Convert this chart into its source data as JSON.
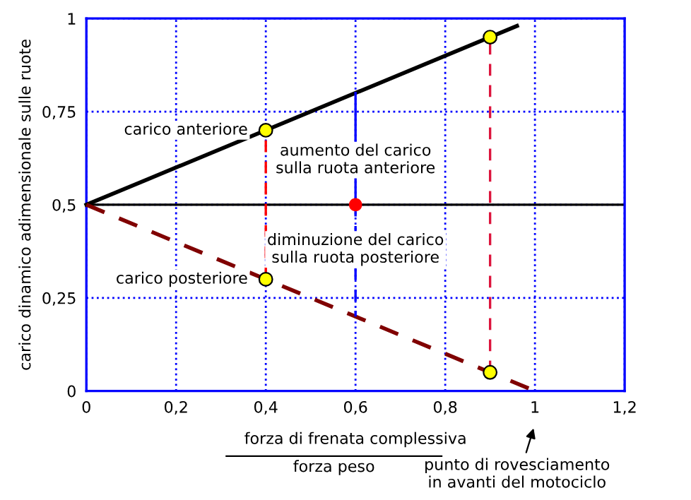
{
  "chart_data": {
    "type": "line",
    "xlabel": "forza di frenata complessiva\nforza peso",
    "ylabel": "carico dinamico adimensionale sulle ruote",
    "xlim": [
      0,
      1.2
    ],
    "xticks": [
      0,
      {
        "value": 0.2,
        "label": "0,2"
      },
      {
        "value": 0.4,
        "label": "0,4"
      },
      {
        "value": 0.6,
        "label": "0,6"
      },
      {
        "value": 0.8,
        "label": "0,8"
      },
      1,
      {
        "value": 1.2,
        "label": "1,2"
      }
    ],
    "ylim": [
      0,
      1
    ],
    "yticks": [
      0,
      {
        "value": 0.25,
        "label": "0,25"
      },
      {
        "value": 0.5,
        "label": "0,5"
      },
      {
        "value": 0.75,
        "label": "0,75"
      },
      1
    ],
    "grid": true,
    "series": [
      {
        "color": "#000000",
        "line_style": "solid",
        "x": [
          0,
          0.96
        ],
        "values": [
          0.5,
          0.98
        ]
      },
      {
        "color": "#800000",
        "line_style": "dashed",
        "x": [
          0,
          1
        ],
        "values": [
          0.5,
          0
        ]
      },
      {
        "type": "line",
        "color": "#ff0000",
        "line_style": "dashed",
        "x": [
          0.4,
          0.4
        ],
        "values": [
          0.3,
          0.7
        ]
      },
      {
        "type": "line",
        "color": "#dc143c",
        "line_style": "dashed",
        "x": [
          0.9,
          0.9
        ],
        "values": [
          0.05,
          0.95
        ]
      },
      {
        "type": "line",
        "color": "#0000ff",
        "line_style": "solid",
        "x": [
          0.6,
          0.6
        ],
        "values": [
          0.5,
          0.8
        ]
      },
      {
        "type": "line",
        "color": "#0000ff",
        "line_style": "dashed",
        "x": [
          0.6,
          0.6
        ],
        "values": [
          0.5,
          0.2
        ]
      },
      {
        "type": "scatter",
        "color": "#ffff00",
        "marker": "circle",
        "x": [
          0.4,
          0.9,
          0.4,
          0.9
        ],
        "values": [
          0.7,
          0.95,
          0.3,
          0.05
        ]
      },
      {
        "type": "scatter",
        "color": "#ff0000",
        "marker": "circle",
        "x": [
          0.6
        ],
        "values": [
          0.5
        ]
      }
    ],
    "ref_lines": [
      {
        "axis": "y",
        "value": 0.5,
        "label": null,
        "color": "#000000"
      }
    ],
    "annotations": [
      "carico anteriore",
      "carico posteriore",
      "aumento del carico\nsulla ruota anteriore",
      "diminuzione del carico\nsulla ruota posteriore",
      "punto di rovesciamento\nin avanti del motociclo"
    ]
  }
}
